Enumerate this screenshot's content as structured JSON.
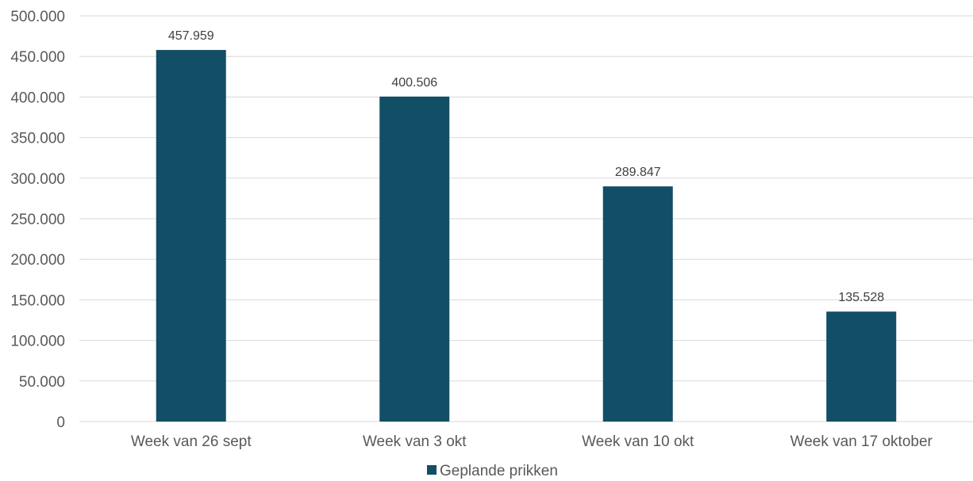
{
  "chart_data": {
    "type": "bar",
    "categories": [
      "Week van 26 sept",
      "Week van 3 okt",
      "Week van 10 okt",
      "Week van 17 oktober"
    ],
    "series": [
      {
        "name": "Geplande prikken",
        "values": [
          457959,
          400506,
          289847,
          135528
        ],
        "data_labels": [
          "457.959",
          "400.506",
          "289.847",
          "135.528"
        ],
        "color": "#124e66"
      }
    ],
    "y_ticks": [
      0,
      50000,
      100000,
      150000,
      200000,
      250000,
      300000,
      350000,
      400000,
      450000,
      500000
    ],
    "y_tick_labels": [
      "0",
      "50.000",
      "100.000",
      "150.000",
      "200.000",
      "250.000",
      "300.000",
      "350.000",
      "400.000",
      "450.000",
      "500.000"
    ],
    "ylim": [
      0,
      500000
    ],
    "grid": true,
    "legend_position": "bottom",
    "title": "",
    "xlabel": "",
    "ylabel": ""
  }
}
